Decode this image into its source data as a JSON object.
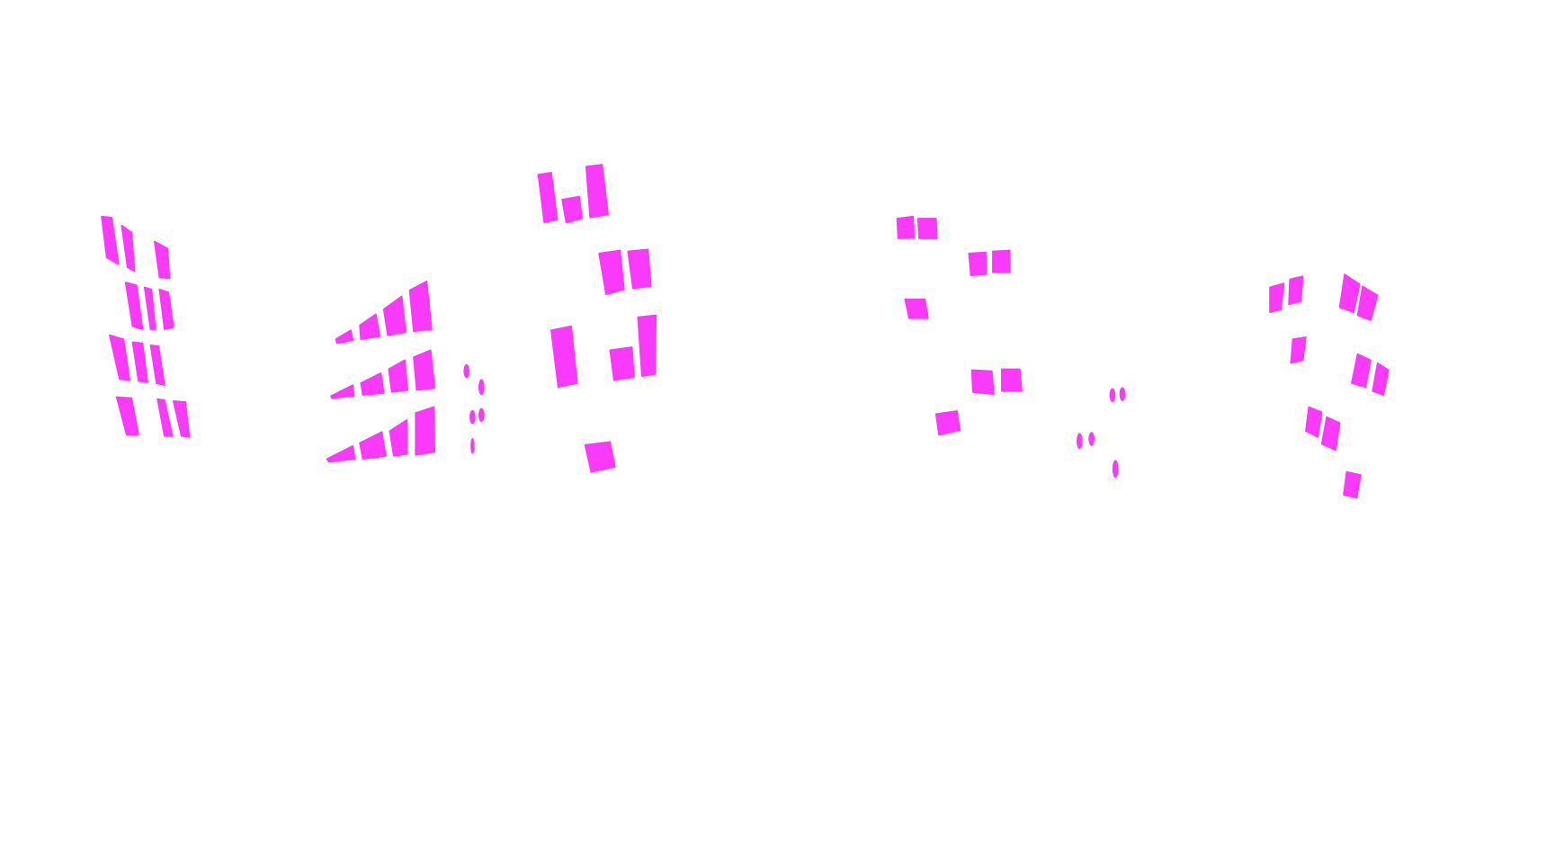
{
  "image": {
    "kind": "segmentation-mask",
    "background_color": "#ffffff",
    "mask_color": "#fa3afa",
    "segment_class": "window"
  }
}
